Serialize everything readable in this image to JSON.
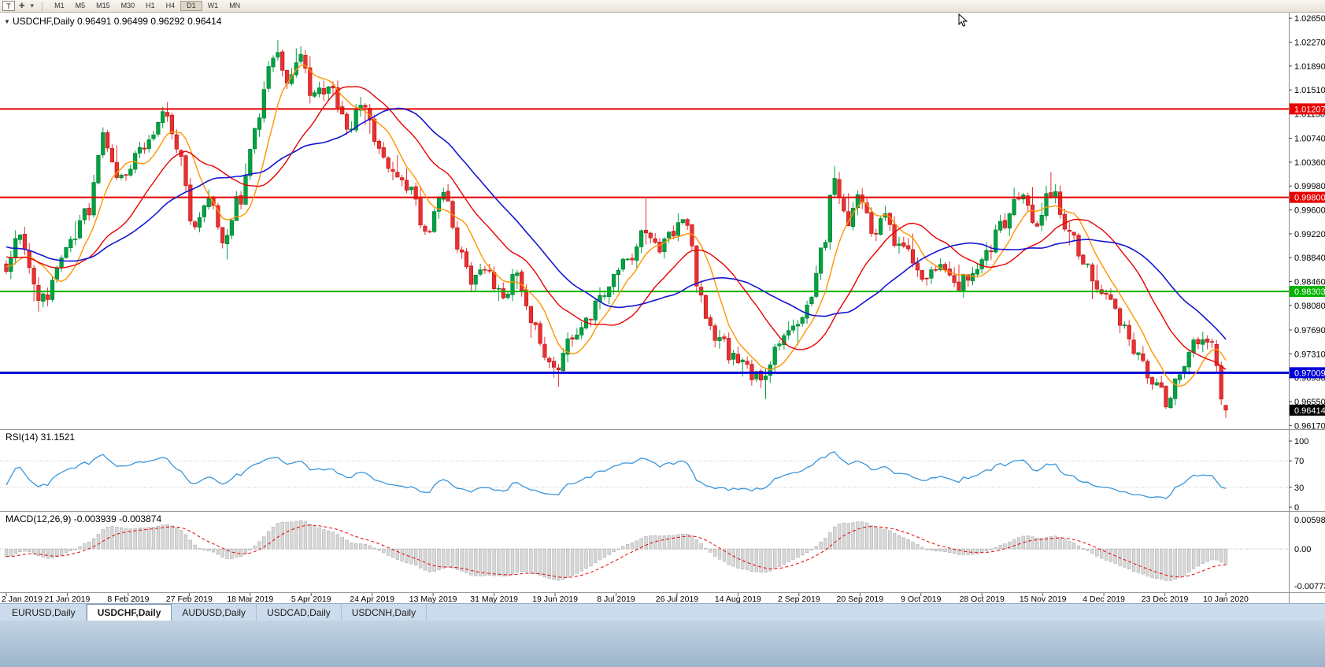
{
  "toolbar": {
    "template_button_label": "T",
    "cursor_icon_glyph": "✚",
    "dropdown_icon_glyph": "▾",
    "timeframes": [
      "M1",
      "M5",
      "M15",
      "M30",
      "H1",
      "H4",
      "D1",
      "W1",
      "MN"
    ],
    "active_timeframe": "D1"
  },
  "tabs": {
    "items": [
      {
        "label": "EURUSD,Daily",
        "active": false
      },
      {
        "label": "USDCHF,Daily",
        "active": true
      },
      {
        "label": "AUDUSD,Daily",
        "active": false
      },
      {
        "label": "USDCAD,Daily",
        "active": false
      },
      {
        "label": "USDCNH,Daily",
        "active": false
      }
    ]
  },
  "chart_data": {
    "type": "candlestick",
    "symbol": "USDCHF",
    "period": "Daily",
    "collapse_icon_glyph": "▼",
    "title_text": "USDCHF,Daily  0.96491 0.96499 0.96292 0.96414",
    "last_bar": {
      "open": "0.96491",
      "high": "0.96499",
      "low": "0.96292",
      "close": "0.96414"
    },
    "bars_count": 266,
    "y_axis_ticks": [
      "1.02650",
      "1.02270",
      "1.01890",
      "1.01510",
      "1.01130",
      "1.00740",
      "1.00360",
      "0.99980",
      "0.99600",
      "0.99220",
      "0.98840",
      "0.98460",
      "0.98080",
      "0.97690",
      "0.97310",
      "0.96930",
      "0.96550",
      "0.96170"
    ],
    "x_axis_labels": [
      "2 Jan 2019",
      "21 Jan 2019",
      "8 Feb 2019",
      "27 Feb 2019",
      "18 Mar 2019",
      "5 Apr 2019",
      "24 Apr 2019",
      "13 May 2019",
      "31 May 2019",
      "19 Jun 2019",
      "8 Jul 2019",
      "26 Jul 2019",
      "14 Aug 2019",
      "2 Sep 2019",
      "20 Sep 2019",
      "9 Oct 2019",
      "28 Oct 2019",
      "15 Nov 2019",
      "4 Dec 2019",
      "23 Dec 2019",
      "10 Jan 2020"
    ],
    "horizontal_levels": [
      {
        "price": 1.01207,
        "label": "1.01207",
        "color": "#e80000",
        "width": 2
      },
      {
        "price": 0.998,
        "label": "0.99800",
        "color": "#e80000",
        "width": 2
      },
      {
        "price": 0.98303,
        "label": "0.98303",
        "color": "#00b400",
        "width": 2
      },
      {
        "price": 0.97009,
        "label": "0.97009",
        "color": "#0000d8",
        "width": 3
      }
    ],
    "current_price": {
      "value": 0.96414,
      "label": "0.96414",
      "bg": "#000000",
      "fg": "#ffffff"
    },
    "candles": {
      "up_color": "#00a243",
      "up_border": "#007a2f",
      "down_color": "#e93030",
      "down_border": "#bb1515"
    },
    "moving_averages": [
      {
        "name": "fast-ma",
        "period": 8,
        "color": "#ff9500",
        "width": 1.4
      },
      {
        "name": "mid-ma",
        "period": 21,
        "color": "#e80000",
        "width": 1.4
      },
      {
        "name": "slow-ma",
        "period": 34,
        "color": "#1616d0",
        "width": 1.6
      }
    ],
    "pre_history_start": 0.996,
    "price_path": [
      [
        0.0,
        0.987
      ],
      [
        0.01,
        0.9925
      ],
      [
        0.028,
        0.9812
      ],
      [
        0.05,
        0.99
      ],
      [
        0.066,
        0.9958
      ],
      [
        0.08,
        1.0075
      ],
      [
        0.094,
        1.0008
      ],
      [
        0.112,
        1.0058
      ],
      [
        0.13,
        1.0115
      ],
      [
        0.143,
        1.0048
      ],
      [
        0.154,
        0.9928
      ],
      [
        0.165,
        0.9985
      ],
      [
        0.178,
        0.991
      ],
      [
        0.192,
        0.998
      ],
      [
        0.205,
        1.009
      ],
      [
        0.216,
        1.019
      ],
      [
        0.222,
        1.0215
      ],
      [
        0.23,
        1.0158
      ],
      [
        0.239,
        1.02
      ],
      [
        0.252,
        1.0145
      ],
      [
        0.266,
        1.015
      ],
      [
        0.28,
        1.0095
      ],
      [
        0.293,
        1.012
      ],
      [
        0.307,
        1.0052
      ],
      [
        0.32,
        1.001
      ],
      [
        0.331,
        0.9998
      ],
      [
        0.344,
        0.9928
      ],
      [
        0.358,
        0.9988
      ],
      [
        0.37,
        0.9905
      ],
      [
        0.382,
        0.985
      ],
      [
        0.394,
        0.9872
      ],
      [
        0.406,
        0.982
      ],
      [
        0.418,
        0.9852
      ],
      [
        0.43,
        0.979
      ],
      [
        0.441,
        0.9722
      ],
      [
        0.45,
        0.9705
      ],
      [
        0.461,
        0.9748
      ],
      [
        0.473,
        0.9778
      ],
      [
        0.487,
        0.9822
      ],
      [
        0.5,
        0.9862
      ],
      [
        0.513,
        0.989
      ],
      [
        0.524,
        0.992
      ],
      [
        0.535,
        0.9898
      ],
      [
        0.547,
        0.9922
      ],
      [
        0.557,
        0.9948
      ],
      [
        0.566,
        0.9852
      ],
      [
        0.576,
        0.9778
      ],
      [
        0.586,
        0.9748
      ],
      [
        0.598,
        0.9722
      ],
      [
        0.61,
        0.97
      ],
      [
        0.621,
        0.969
      ],
      [
        0.633,
        0.9738
      ],
      [
        0.646,
        0.9768
      ],
      [
        0.658,
        0.9812
      ],
      [
        0.67,
        0.9905
      ],
      [
        0.679,
        1.0005
      ],
      [
        0.69,
        0.9948
      ],
      [
        0.7,
        0.9978
      ],
      [
        0.71,
        0.9925
      ],
      [
        0.72,
        0.9958
      ],
      [
        0.73,
        0.9905
      ],
      [
        0.741,
        0.9888
      ],
      [
        0.753,
        0.9852
      ],
      [
        0.765,
        0.987
      ],
      [
        0.778,
        0.9832
      ],
      [
        0.79,
        0.9852
      ],
      [
        0.803,
        0.9892
      ],
      [
        0.816,
        0.9938
      ],
      [
        0.83,
        0.9985
      ],
      [
        0.843,
        0.9942
      ],
      [
        0.857,
        0.9988
      ],
      [
        0.871,
        0.9925
      ],
      [
        0.885,
        0.9868
      ],
      [
        0.899,
        0.9822
      ],
      [
        0.914,
        0.9782
      ],
      [
        0.929,
        0.9722
      ],
      [
        0.941,
        0.9678
      ],
      [
        0.951,
        0.9658
      ],
      [
        0.962,
        0.9702
      ],
      [
        0.973,
        0.9748
      ],
      [
        0.983,
        0.9758
      ],
      [
        0.991,
        0.9735
      ],
      [
        1.0,
        0.9648
      ]
    ],
    "events": [
      {
        "f": 0.028,
        "low": 0.9798
      },
      {
        "f": 0.13,
        "high": 1.0124
      },
      {
        "f": 0.222,
        "high": 1.023
      },
      {
        "f": 0.239,
        "high": 1.0217
      },
      {
        "f": 0.45,
        "low": 0.9693
      },
      {
        "f": 0.524,
        "high": 0.9978
      },
      {
        "f": 0.621,
        "low": 0.9659
      },
      {
        "f": 0.679,
        "high": 1.003
      },
      {
        "f": 0.857,
        "high": 1.002
      },
      {
        "f": 0.9925,
        "ohlc": [
          0.9746,
          0.9753,
          0.9701,
          0.9712
        ]
      },
      {
        "f": 0.9962,
        "ohlc": [
          0.9712,
          0.9719,
          0.965,
          0.9659
        ]
      },
      {
        "f": 1.0,
        "ohlc": [
          0.96491,
          0.96499,
          0.96292,
          0.96414
        ]
      }
    ],
    "indicators": {
      "rsi": {
        "label": "RSI(14) 31.1521",
        "period": 14,
        "levels": [
          "100",
          "70",
          "30",
          "0"
        ],
        "level_values": [
          100,
          70,
          30,
          0
        ],
        "dotted_levels": [
          70,
          30
        ],
        "line_color": "#3a96dd",
        "last_value": 31.1521
      },
      "macd": {
        "label": "MACD(12,26,9) -0.003939 -0.003874",
        "fast": 12,
        "slow": 26,
        "signal": 9,
        "axis_labels": [
          "0.005986",
          "0.00",
          "-0.007737"
        ],
        "axis_max": 0.005986,
        "axis_min": -0.007737,
        "histogram_fill": "#d8d8d8",
        "histogram_border": "#a6a6a6",
        "signal_color": "#e80000"
      }
    }
  }
}
